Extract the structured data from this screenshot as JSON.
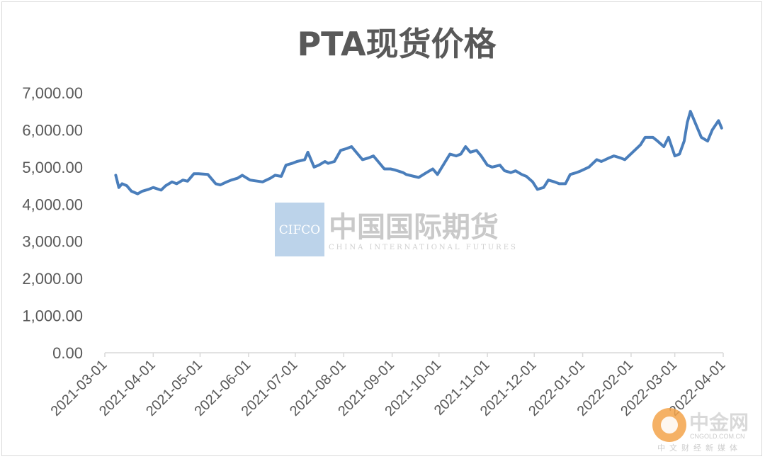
{
  "chart_data": {
    "type": "line",
    "title": "PTA现货价格",
    "xlabel": "",
    "ylabel": "",
    "ylim": [
      0,
      7000
    ],
    "yticks": [
      "7,000.00",
      "6,000.00",
      "5,000.00",
      "4,000.00",
      "3,000.00",
      "2,000.00",
      "1,000.00",
      "0.00"
    ],
    "xticks": [
      "2021-03-01",
      "2021-04-01",
      "2021-05-01",
      "2021-06-01",
      "2021-07-01",
      "2021-08-01",
      "2021-09-01",
      "2021-10-01",
      "2021-11-01",
      "2021-12-01",
      "2022-01-01",
      "2022-02-01",
      "2022-03-01",
      "2022-04-01"
    ],
    "grid": false,
    "legend": "none",
    "line_color": "#4a7ebb",
    "series": [
      {
        "name": "",
        "x": [
          "2021-03-08",
          "2021-03-10",
          "2021-03-12",
          "2021-03-15",
          "2021-03-18",
          "2021-03-22",
          "2021-03-25",
          "2021-03-29",
          "2021-04-01",
          "2021-04-06",
          "2021-04-09",
          "2021-04-13",
          "2021-04-16",
          "2021-04-20",
          "2021-04-23",
          "2021-04-27",
          "2021-04-30",
          "2021-05-06",
          "2021-05-11",
          "2021-05-14",
          "2021-05-18",
          "2021-05-21",
          "2021-05-25",
          "2021-05-28",
          "2021-06-02",
          "2021-06-07",
          "2021-06-10",
          "2021-06-15",
          "2021-06-18",
          "2021-06-22",
          "2021-06-25",
          "2021-06-29",
          "2021-07-02",
          "2021-07-07",
          "2021-07-09",
          "2021-07-13",
          "2021-07-16",
          "2021-07-20",
          "2021-07-22",
          "2021-07-26",
          "2021-07-30",
          "2021-08-03",
          "2021-08-06",
          "2021-08-10",
          "2021-08-13",
          "2021-08-17",
          "2021-08-20",
          "2021-08-24",
          "2021-08-27",
          "2021-08-31",
          "2021-09-03",
          "2021-09-08",
          "2021-09-10",
          "2021-09-15",
          "2021-09-18",
          "2021-09-23",
          "2021-09-27",
          "2021-09-30",
          "2021-10-08",
          "2021-10-12",
          "2021-10-15",
          "2021-10-18",
          "2021-10-21",
          "2021-10-25",
          "2021-10-28",
          "2021-11-01",
          "2021-11-04",
          "2021-11-09",
          "2021-11-12",
          "2021-11-16",
          "2021-11-19",
          "2021-11-23",
          "2021-11-26",
          "2021-11-30",
          "2021-12-03",
          "2021-12-07",
          "2021-12-10",
          "2021-12-14",
          "2021-12-17",
          "2021-12-21",
          "2021-12-24",
          "2021-12-28",
          "2021-12-31",
          "2022-01-05",
          "2022-01-10",
          "2022-01-13",
          "2022-01-18",
          "2022-01-21",
          "2022-01-25",
          "2022-01-28",
          "2022-02-07",
          "2022-02-10",
          "2022-02-15",
          "2022-02-18",
          "2022-02-22",
          "2022-02-25",
          "2022-03-01",
          "2022-03-04",
          "2022-03-07",
          "2022-03-09",
          "2022-03-11",
          "2022-03-15",
          "2022-03-18",
          "2022-03-22",
          "2022-03-25",
          "2022-03-29",
          "2022-03-31"
        ],
        "values": [
          4780,
          4450,
          4550,
          4500,
          4350,
          4280,
          4350,
          4400,
          4450,
          4380,
          4500,
          4600,
          4550,
          4650,
          4620,
          4820,
          4820,
          4800,
          4550,
          4520,
          4600,
          4650,
          4700,
          4780,
          4650,
          4620,
          4600,
          4700,
          4780,
          4750,
          5050,
          5100,
          5150,
          5200,
          5400,
          5000,
          5050,
          5150,
          5100,
          5150,
          5450,
          5500,
          5550,
          5350,
          5200,
          5250,
          5300,
          5100,
          4950,
          4950,
          4920,
          4850,
          4800,
          4750,
          4720,
          4850,
          4950,
          4800,
          5350,
          5300,
          5350,
          5550,
          5400,
          5450,
          5300,
          5050,
          5000,
          5050,
          4900,
          4850,
          4900,
          4800,
          4750,
          4600,
          4400,
          4450,
          4650,
          4600,
          4550,
          4550,
          4800,
          4850,
          4900,
          5000,
          5200,
          5150,
          5250,
          5300,
          5250,
          5200,
          5600,
          5800,
          5800,
          5700,
          5550,
          5800,
          5300,
          5350,
          5700,
          6200,
          6500,
          6100,
          5800,
          5700,
          6000,
          6250,
          6050
        ]
      }
    ]
  },
  "watermark": {
    "logo_text": "CIFCO",
    "name_cn": "中国国际期货",
    "name_en": "CHINA INTERNATIONAL FUTURES"
  },
  "site_mark": {
    "name_cn": "中金网",
    "domain": "CNGOLD.COM.CN",
    "subtitle": "中文财经新媒体"
  }
}
